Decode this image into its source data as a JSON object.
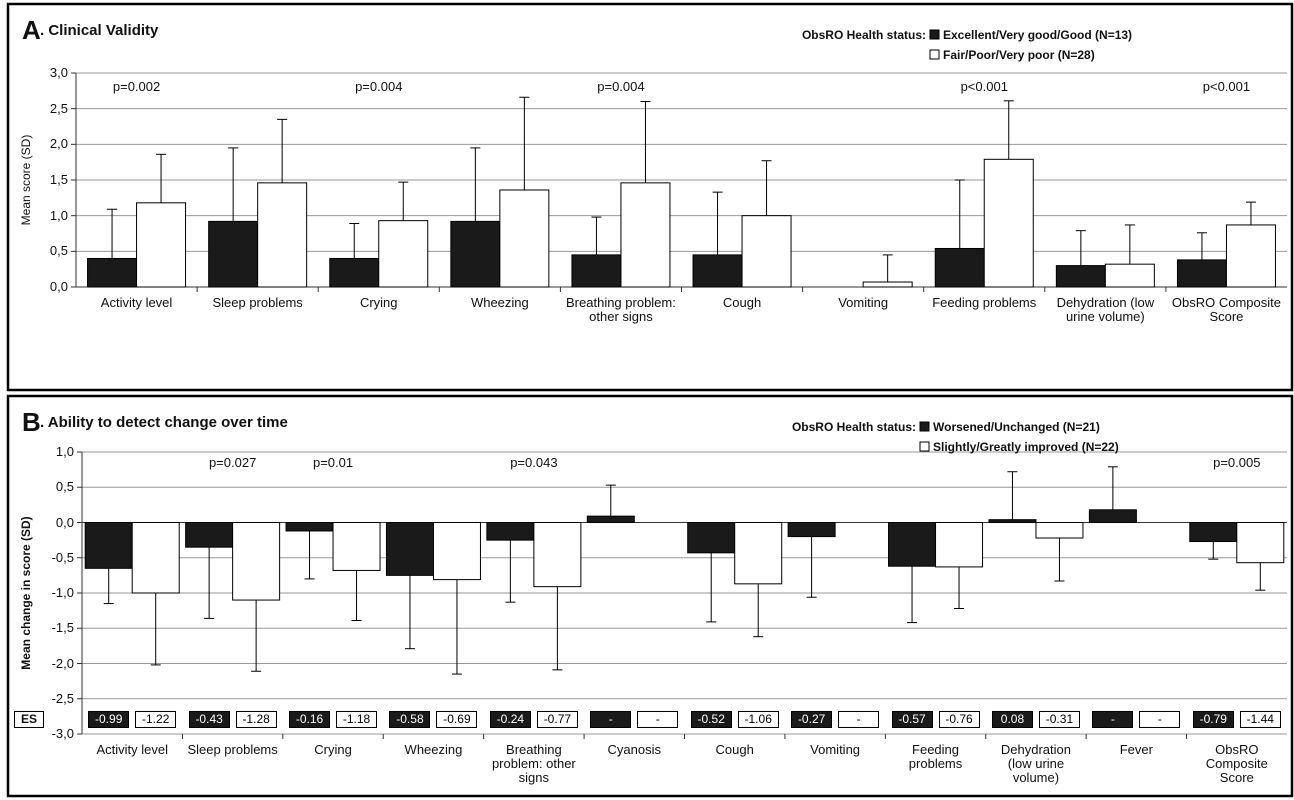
{
  "chart_data": [
    {
      "type": "bar",
      "panel_label": "A",
      "title": ". Clinical Validity",
      "ylabel": "Mean score (SD)",
      "legend_title": "ObsRO Health status:",
      "categories": [
        "Activity level",
        "Sleep problems",
        "Crying",
        "Wheezing",
        "Breathing problem: other signs",
        "Cough",
        "Vomiting",
        "Feeding problems",
        "Dehydration (low urine volume)",
        "ObsRO Composite Score"
      ],
      "series": [
        {
          "name": "Excellent/Very good/Good (N=13)",
          "color": "#1a1a1a",
          "values": [
            0.4,
            0.92,
            0.4,
            0.92,
            0.45,
            0.45,
            null,
            0.54,
            0.3,
            0.38
          ],
          "errors": [
            0.69,
            1.03,
            0.49,
            1.03,
            0.53,
            0.88,
            null,
            0.96,
            0.49,
            0.38
          ]
        },
        {
          "name": "Fair/Poor/Very poor (N=28)",
          "color": "#ffffff",
          "values": [
            1.18,
            1.46,
            0.93,
            1.36,
            1.46,
            1.0,
            0.07,
            1.79,
            0.32,
            0.87
          ],
          "errors": [
            0.68,
            0.89,
            0.54,
            1.3,
            1.14,
            0.77,
            0.38,
            0.82,
            0.55,
            0.32
          ]
        }
      ],
      "annotations": [
        "p=0.002",
        null,
        "p=0.004",
        null,
        "p=0.004",
        null,
        null,
        "p<0.001",
        null,
        "p<0.001"
      ],
      "ylim": [
        0,
        3
      ],
      "yticks": [
        {
          "value": 0,
          "label": "0,0"
        },
        {
          "value": 0.5,
          "label": "0,5"
        },
        {
          "value": 1,
          "label": "1,0"
        },
        {
          "value": 1.5,
          "label": "1,5"
        },
        {
          "value": 2,
          "label": "2,0"
        },
        {
          "value": 2.5,
          "label": "2,5"
        },
        {
          "value": 3,
          "label": "3,0"
        }
      ],
      "grid": true
    },
    {
      "type": "bar",
      "panel_label": "B",
      "title": ". Ability to detect change over time",
      "ylabel": "Mean change in score (SD)",
      "legend_title": "ObsRO Health status:",
      "es_label": "ES",
      "categories": [
        "Activity level",
        "Sleep problems",
        "Crying",
        "Wheezing",
        "Breathing problem: other signs",
        "Cyanosis",
        "Cough",
        "Vomiting",
        "Feeding problems",
        "Dehydration (low urine volume)",
        "Fever",
        "ObsRO Composite Score"
      ],
      "series": [
        {
          "name": "Worsened/Unchanged (N=21)",
          "color": "#1a1a1a",
          "values": [
            -0.65,
            -0.35,
            -0.12,
            -0.75,
            -0.25,
            0.09,
            -0.43,
            -0.2,
            -0.62,
            0.04,
            0.18,
            -0.27
          ],
          "errors": [
            0.5,
            1.01,
            0.68,
            1.04,
            0.88,
            0.44,
            0.98,
            0.86,
            0.8,
            0.68,
            0.61,
            0.25
          ],
          "es_labels": [
            "-0.99",
            "-0.43",
            "-0.16",
            "-0.58",
            "-0.24",
            "-",
            "-0.52",
            "-0.27",
            "-0.57",
            "0.08",
            "-",
            "-0.79"
          ]
        },
        {
          "name": "Slightly/Greatly improved (N=22)",
          "color": "#ffffff",
          "values": [
            -1.0,
            -1.1,
            -0.68,
            -0.81,
            -0.91,
            null,
            -0.87,
            null,
            -0.63,
            -0.22,
            null,
            -0.57
          ],
          "errors": [
            1.02,
            1.01,
            0.71,
            1.34,
            1.18,
            null,
            0.75,
            null,
            0.59,
            0.61,
            null,
            0.39
          ],
          "es_labels": [
            "-1.22",
            "-1.28",
            "-1.18",
            "-0.69",
            "-0.77",
            "-",
            "-1.06",
            "-",
            "-0.76",
            "-0.31",
            "-",
            "-1.44"
          ]
        }
      ],
      "annotations": [
        null,
        "p=0.027",
        "p=0.01",
        null,
        "p=0.043",
        null,
        null,
        null,
        null,
        null,
        null,
        "p=0.005"
      ],
      "ylim": [
        -3,
        1
      ],
      "yticks": [
        {
          "value": 1,
          "label": "1,0"
        },
        {
          "value": 0.5,
          "label": "0,5"
        },
        {
          "value": 0,
          "label": "0,0"
        },
        {
          "value": -0.5,
          "label": "-0,5"
        },
        {
          "value": -1,
          "label": "-1,0"
        },
        {
          "value": -1.5,
          "label": "-1,5"
        },
        {
          "value": -2,
          "label": "-2,0"
        },
        {
          "value": -2.5,
          "label": "-2,5"
        },
        {
          "value": -3,
          "label": "-3,0"
        }
      ],
      "grid": true
    }
  ]
}
